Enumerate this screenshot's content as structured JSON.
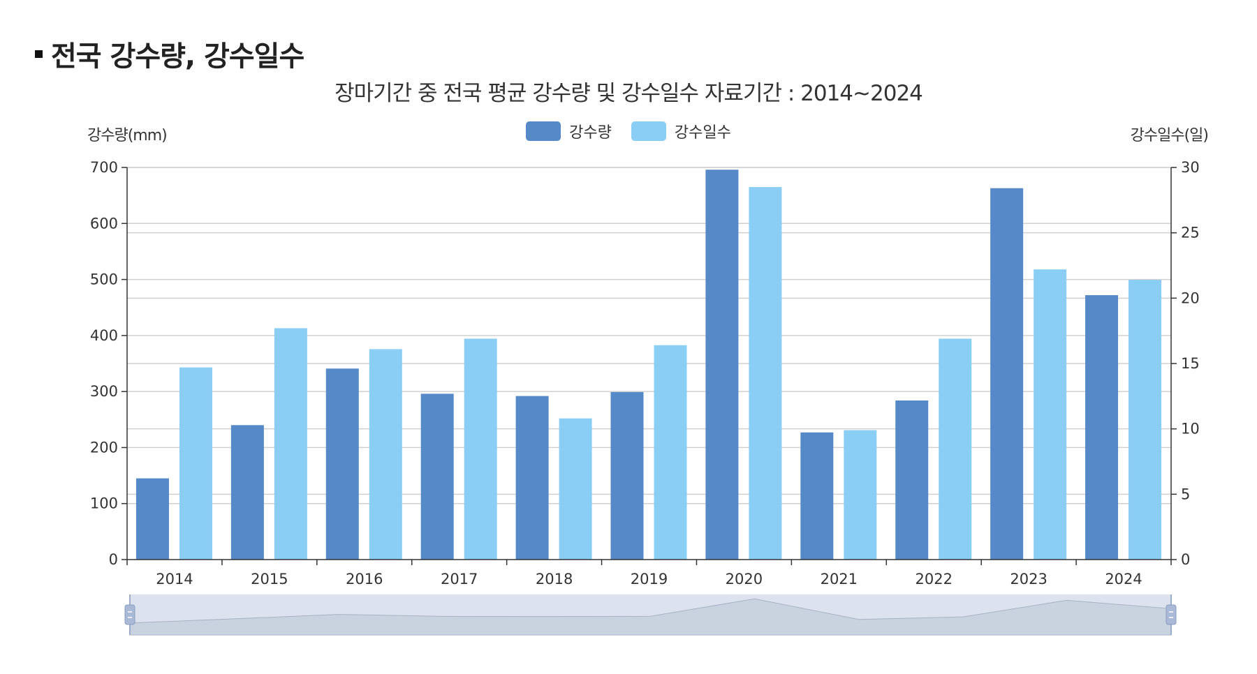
{
  "section": {
    "title": "전국 강수량, 강수일수"
  },
  "chart_data": {
    "type": "bar",
    "title": "장마기간 중 전국 평균 강수량 및 강수일수 자료기간 : 2014~2024",
    "ylabel": "강수량(mm)",
    "y2label": "강수일수(일)",
    "ylim": [
      0,
      700
    ],
    "y2lim": [
      0,
      30
    ],
    "yticks": [
      0,
      100,
      200,
      300,
      400,
      500,
      600,
      700
    ],
    "y2ticks": [
      0,
      5,
      10,
      15,
      20,
      25,
      30
    ],
    "categories": [
      "2014",
      "2015",
      "2016",
      "2017",
      "2018",
      "2019",
      "2020",
      "2021",
      "2022",
      "2023",
      "2024"
    ],
    "series": [
      {
        "name": "강수량",
        "axis": "left",
        "color": "#5689c8",
        "values": [
          145,
          240,
          341,
          296,
          292,
          299,
          696,
          227,
          284,
          663,
          472
        ]
      },
      {
        "name": "강수일수",
        "axis": "right",
        "color": "#8acdf5",
        "values": [
          14.7,
          17.7,
          16.1,
          16.9,
          10.8,
          16.4,
          28.5,
          9.9,
          16.9,
          22.2,
          21.4
        ]
      }
    ],
    "grid": true,
    "legend": "top-center"
  },
  "colors": {
    "axis": "#333333",
    "grid": "#d0d0d0",
    "navigator_bg": "#dde3ee",
    "navigator_handle": "#a9b9d6"
  }
}
